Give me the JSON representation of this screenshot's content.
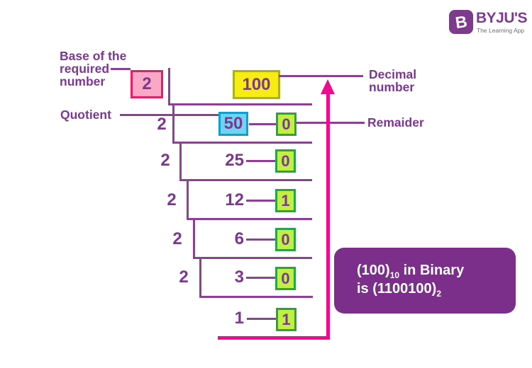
{
  "colors": {
    "purple": "#8C4194",
    "text_purple": "#7C3790",
    "pink_fill": "#F9A8C6",
    "pink_border": "#EC1A68",
    "yellow_fill": "#F7EC13",
    "yellow_border": "#A9B11C",
    "blue_fill": "#6FD4F2",
    "blue_border": "#129FCC",
    "green_fill": "#BFF042",
    "green_border": "#28A346",
    "arrow_pink": "#EC0C8C",
    "result_bg": "#7B2E8A",
    "logo_purple": "#7E3A8C",
    "tagline_gray": "#6D6E71"
  },
  "logo": {
    "brand": "BYJU'S",
    "tagline": "The Learning App",
    "icon_letter": "B"
  },
  "labels": {
    "base": "Base of the\nrequired\nnumber",
    "quotient": "Quotient",
    "decimal": "Decimal\nnumber",
    "remainder": "Remaider"
  },
  "ladder": {
    "rows": [
      {
        "divisor": "2",
        "quotient": "100",
        "remainder": ""
      },
      {
        "divisor": "2",
        "quotient": "50",
        "remainder": "0"
      },
      {
        "divisor": "2",
        "quotient": "25",
        "remainder": "0"
      },
      {
        "divisor": "2",
        "quotient": "12",
        "remainder": "1"
      },
      {
        "divisor": "2",
        "quotient": "6",
        "remainder": "0"
      },
      {
        "divisor": "2",
        "quotient": "3",
        "remainder": "0"
      },
      {
        "divisor": "",
        "quotient": "1",
        "remainder": "1"
      }
    ]
  },
  "result": {
    "line1_main": "(100)",
    "line1_sub": "10",
    "line1_rest": " in Binary",
    "line2_main": "is (1100100)",
    "line2_sub": "2"
  }
}
